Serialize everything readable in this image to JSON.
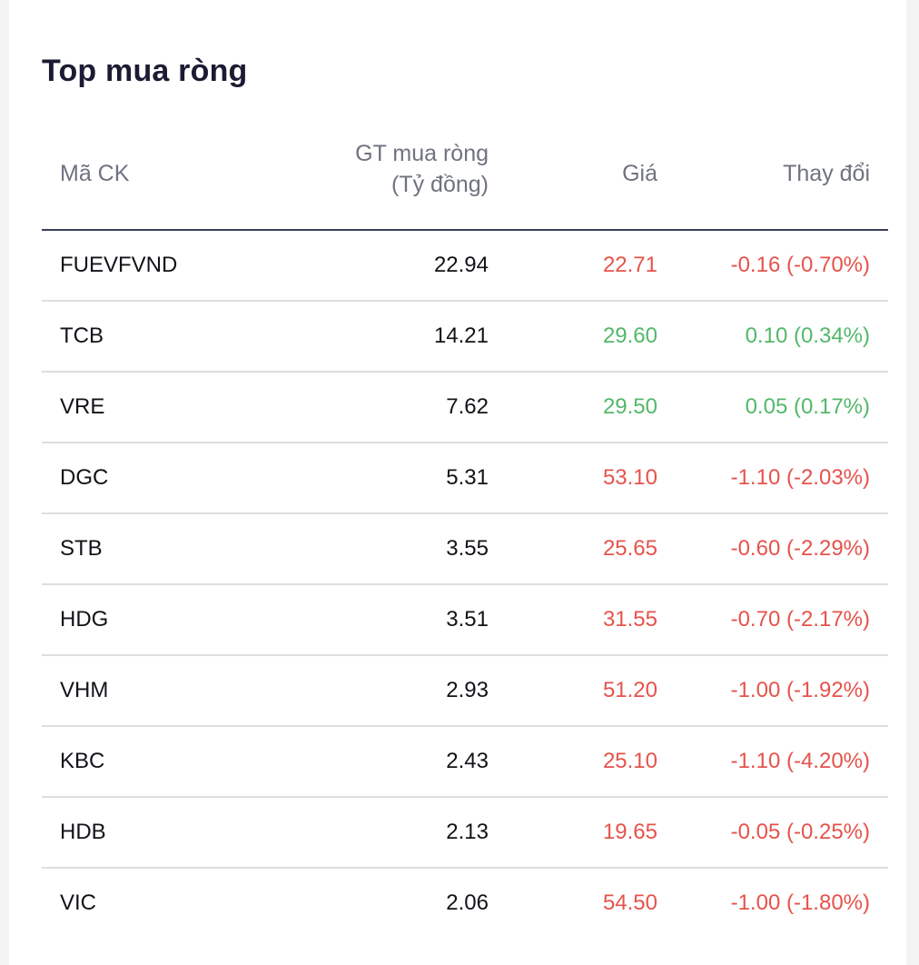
{
  "panel": {
    "title": "Top mua ròng"
  },
  "table": {
    "headers": {
      "symbol": "Mã CK",
      "value_line1": "GT mua ròng",
      "value_line2": "(Tỷ đồng)",
      "price": "Giá",
      "change": "Thay đổi"
    },
    "rows": [
      {
        "symbol": "FUEVFVND",
        "value": "22.94",
        "price": "22.71",
        "change": "-0.16 (-0.70%)",
        "trend": "down"
      },
      {
        "symbol": "TCB",
        "value": "14.21",
        "price": "29.60",
        "change": "0.10 (0.34%)",
        "trend": "up"
      },
      {
        "symbol": "VRE",
        "value": "7.62",
        "price": "29.50",
        "change": "0.05 (0.17%)",
        "trend": "up"
      },
      {
        "symbol": "DGC",
        "value": "5.31",
        "price": "53.10",
        "change": "-1.10 (-2.03%)",
        "trend": "down"
      },
      {
        "symbol": "STB",
        "value": "3.55",
        "price": "25.65",
        "change": "-0.60 (-2.29%)",
        "trend": "down"
      },
      {
        "symbol": "HDG",
        "value": "3.51",
        "price": "31.55",
        "change": "-0.70 (-2.17%)",
        "trend": "down"
      },
      {
        "symbol": "VHM",
        "value": "2.93",
        "price": "51.20",
        "change": "-1.00 (-1.92%)",
        "trend": "down"
      },
      {
        "symbol": "KBC",
        "value": "2.43",
        "price": "25.10",
        "change": "-1.10 (-4.20%)",
        "trend": "down"
      },
      {
        "symbol": "HDB",
        "value": "2.13",
        "price": "19.65",
        "change": "-0.05 (-0.25%)",
        "trend": "down"
      },
      {
        "symbol": "VIC",
        "value": "2.06",
        "price": "54.50",
        "change": "-1.00 (-1.80%)",
        "trend": "down"
      }
    ]
  },
  "colors": {
    "up": "#52b86a",
    "down": "#e5534b",
    "title": "#1b1c33",
    "header_text": "#6f7280",
    "header_rule": "#3b3f58",
    "row_rule": "#dedede"
  }
}
